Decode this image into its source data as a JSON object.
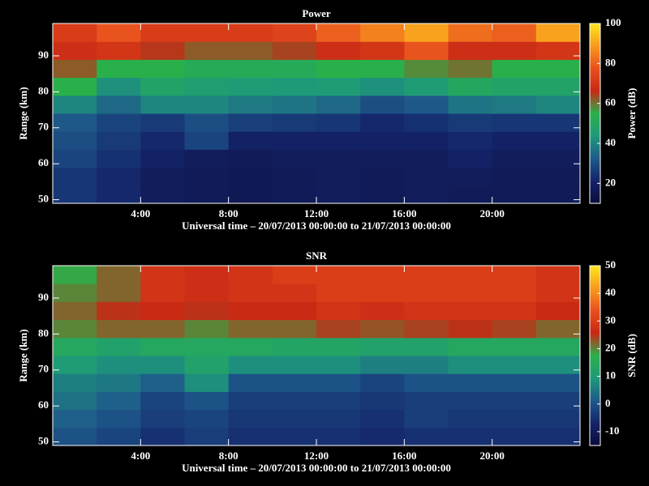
{
  "chart_data": [
    {
      "type": "heatmap",
      "title": "Power",
      "ylabel": "Range (km)",
      "xlabel": "Universal time – 20/07/2013 00:00:00 to 21/07/2013 00:00:00",
      "zlabel": "Power (dB)",
      "x": [
        0,
        2,
        4,
        6,
        8,
        10,
        12,
        14,
        16,
        18,
        20,
        22,
        24
      ],
      "y": [
        49,
        54,
        59,
        64,
        69,
        74,
        79,
        84,
        89,
        94,
        99
      ],
      "z": [
        [
          25,
          22,
          18,
          17,
          16,
          17,
          18,
          17,
          18,
          17,
          17,
          17
        ],
        [
          25,
          22,
          18,
          17,
          16,
          17,
          18,
          17,
          18,
          18,
          17,
          17
        ],
        [
          28,
          24,
          20,
          18,
          17,
          18,
          18,
          18,
          18,
          20,
          18,
          18
        ],
        [
          30,
          26,
          22,
          28,
          20,
          20,
          20,
          20,
          20,
          22,
          20,
          20
        ],
        [
          32,
          28,
          26,
          30,
          27,
          26,
          25,
          22,
          24,
          26,
          25,
          25
        ],
        [
          40,
          35,
          40,
          40,
          38,
          37,
          35,
          30,
          32,
          37,
          38,
          40
        ],
        [
          55,
          42,
          48,
          46,
          45,
          44,
          45,
          42,
          45,
          50,
          48,
          48
        ],
        [
          62,
          55,
          55,
          52,
          52,
          52,
          55,
          55,
          58,
          60,
          55,
          55
        ],
        [
          68,
          70,
          65,
          62,
          62,
          64,
          68,
          70,
          78,
          68,
          68,
          70
        ],
        [
          72,
          78,
          72,
          72,
          72,
          74,
          80,
          85,
          90,
          82,
          80,
          90
        ]
      ],
      "xlim": [
        0,
        24
      ],
      "ylim": [
        49,
        99
      ],
      "zlim": [
        10,
        100
      ],
      "xticks": [
        {
          "value": 4,
          "label": "4:00"
        },
        {
          "value": 8,
          "label": "8:00"
        },
        {
          "value": 12,
          "label": "12:00"
        },
        {
          "value": 16,
          "label": "16:00"
        },
        {
          "value": 20,
          "label": "20:00"
        }
      ],
      "yticks": [
        50,
        60,
        70,
        80,
        90
      ],
      "zticks": [
        20,
        40,
        60,
        80,
        100
      ],
      "colormap": [
        "#0c0c3a",
        "#14246a",
        "#1e5a8a",
        "#1e9a7a",
        "#2ab04a",
        "#c82814",
        "#e8501e",
        "#f89a1e",
        "#ffe61e"
      ]
    },
    {
      "type": "heatmap",
      "title": "SNR",
      "ylabel": "Range (km)",
      "xlabel": "Universal time – 20/07/2013 00:00:00 to 21/07/2013 00:00:00",
      "zlabel": "SNR (dB)",
      "x": [
        0,
        2,
        4,
        6,
        8,
        10,
        12,
        14,
        16,
        18,
        20,
        22,
        24
      ],
      "y": [
        49,
        54,
        59,
        64,
        69,
        74,
        79,
        84,
        89,
        94,
        99
      ],
      "z": [
        [
          0,
          -2,
          -5,
          -3,
          -5,
          -5,
          -5,
          -6,
          -5,
          -5,
          -5,
          -5
        ],
        [
          2,
          0,
          -3,
          -2,
          -4,
          -4,
          -4,
          -5,
          -3,
          -4,
          -4,
          -4
        ],
        [
          4,
          2,
          -2,
          0,
          -3,
          -3,
          -3,
          -4,
          -3,
          -3,
          -3,
          -3
        ],
        [
          6,
          5,
          2,
          8,
          0,
          0,
          0,
          -2,
          0,
          0,
          0,
          0
        ],
        [
          10,
          8,
          8,
          12,
          8,
          8,
          8,
          6,
          6,
          8,
          8,
          8
        ],
        [
          14,
          12,
          14,
          14,
          14,
          13,
          13,
          12,
          12,
          14,
          14,
          14
        ],
        [
          20,
          22,
          22,
          20,
          22,
          22,
          24,
          23,
          24,
          25,
          24,
          22
        ],
        [
          22,
          25,
          26,
          25,
          26,
          26,
          28,
          27,
          28,
          28,
          28,
          26
        ],
        [
          20,
          22,
          28,
          27,
          28,
          28,
          30,
          30,
          30,
          30,
          30,
          28
        ],
        [
          18,
          22,
          28,
          27,
          28,
          30,
          30,
          30,
          30,
          30,
          30,
          28
        ]
      ],
      "xlim": [
        0,
        24
      ],
      "ylim": [
        49,
        99
      ],
      "zlim": [
        -15,
        50
      ],
      "xticks": [
        {
          "value": 4,
          "label": "4:00"
        },
        {
          "value": 8,
          "label": "8:00"
        },
        {
          "value": 12,
          "label": "12:00"
        },
        {
          "value": 16,
          "label": "16:00"
        },
        {
          "value": 20,
          "label": "20:00"
        }
      ],
      "yticks": [
        50,
        60,
        70,
        80,
        90
      ],
      "zticks": [
        -10,
        0,
        10,
        20,
        30,
        40,
        50
      ],
      "colormap": [
        "#0c0c3a",
        "#14246a",
        "#1e5a8a",
        "#1e9a7a",
        "#2ab04a",
        "#c82814",
        "#e8501e",
        "#f89a1e",
        "#ffe61e"
      ]
    }
  ]
}
